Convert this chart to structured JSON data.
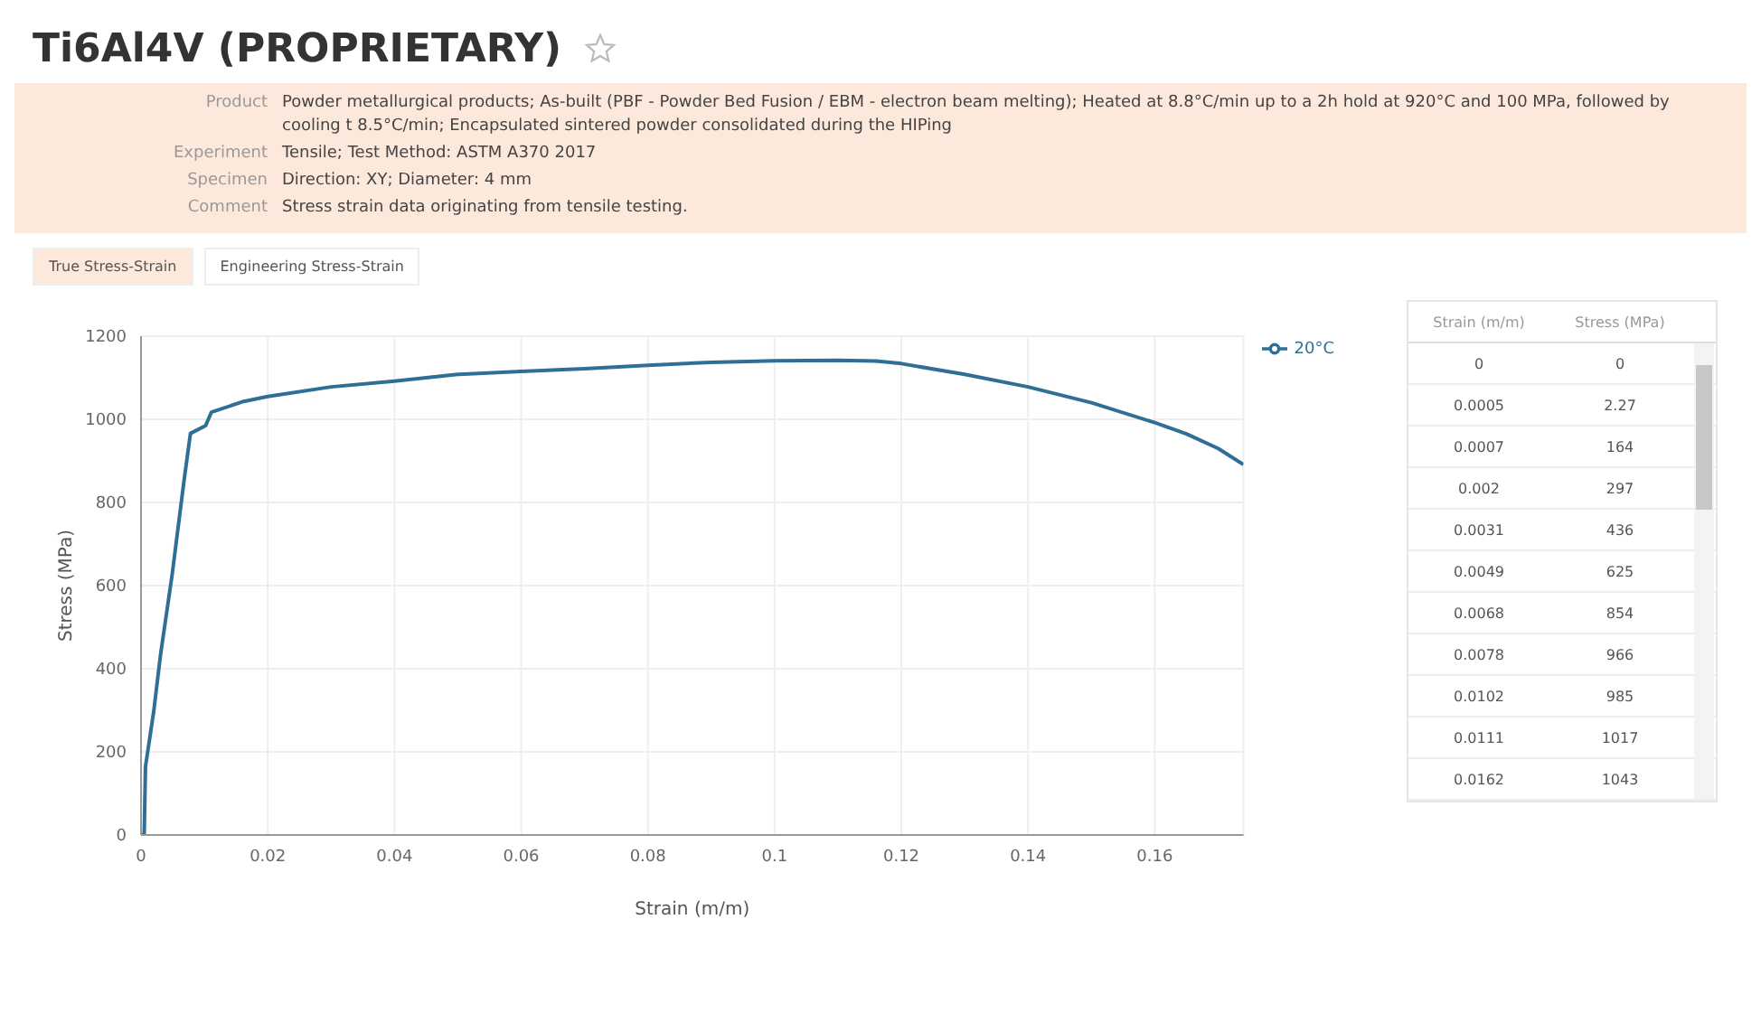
{
  "chart_data": [
    {
      "type": "line",
      "title": "Ti6Al4V (PROPRIETARY)",
      "xlabel": "Strain (m/m)",
      "ylabel": "Stress (MPa)",
      "annotations": [
        "Product",
        "Powder metallurgical products; As-built (PBF - Powder Bed Fusion / EBM - electron beam melting); Heated at 8.8°C/min up to a 2h hold at 920°C and 100 MPa, followed by cooling t 8.5°C/min; Encapsulated sintered powder consolidated during the HIPing",
        "Experiment",
        "Tensile; Test Method: ASTM A370 2017",
        "Specimen",
        "Direction: XY; Diameter: 4 mm",
        "Comment",
        "Stress strain data originating from tensile testing.",
        "True Stress-Strain",
        "Engineering Stress-Strain"
      ],
      "series": [
        {
          "name": "20°C",
          "color": "#2f6f96",
          "x": [
            0,
            0.0005,
            0.0007,
            0.002,
            0.0031,
            0.0049,
            0.0068,
            0.0078,
            0.0102,
            0.0111,
            0.0162,
            0.02,
            0.03,
            0.04,
            0.05,
            0.06,
            0.07,
            0.08,
            0.09,
            0.1,
            0.11,
            0.116,
            0.12,
            0.13,
            0.14,
            0.15,
            0.16,
            0.165,
            0.17,
            0.174
          ],
          "values": [
            0,
            2,
            164,
            297,
            436,
            625,
            854,
            966,
            985,
            1017,
            1043,
            1055,
            1078,
            1092,
            1108,
            1115,
            1122,
            1130,
            1137,
            1141,
            1142,
            1140,
            1134,
            1108,
            1078,
            1040,
            992,
            965,
            930,
            891
          ]
        }
      ],
      "xlim": [
        0,
        0.174
      ],
      "xticks": [
        0,
        0.02,
        0.04,
        0.06,
        0.08,
        0.1,
        0.12,
        0.14,
        0.16
      ],
      "ylim": [
        0,
        1200
      ],
      "yticks": [
        0,
        200,
        400,
        600,
        800,
        1000,
        1200
      ],
      "grid": true,
      "legend": "top right",
      "marker": "none",
      "line_style": "solid"
    },
    {
      "type": "other",
      "xlabel": "Strain (m/m)",
      "ylabel": "Stress (MPa)",
      "categories": [
        "0",
        "0.0005",
        "0.0007",
        "0.002",
        "0.0031",
        "0.0049",
        "0.0068",
        "0.0078",
        "0.0102",
        "0.0111",
        "0.0162"
      ],
      "values": [
        0,
        2.27,
        164,
        297,
        436,
        625,
        854,
        966,
        985,
        1017,
        1043
      ],
      "data_labels": true
    }
  ]
}
